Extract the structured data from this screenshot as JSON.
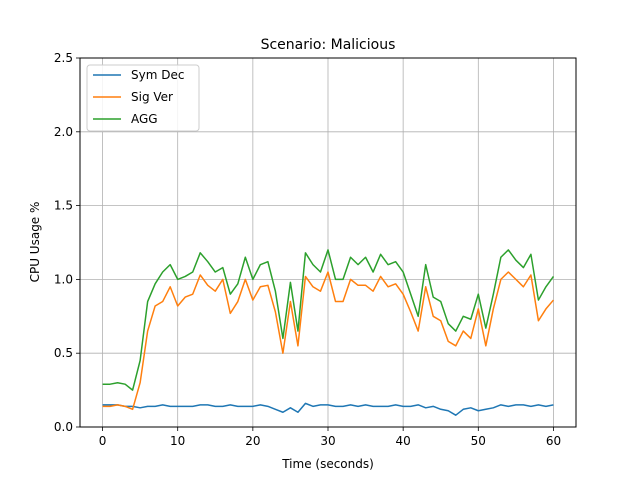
{
  "chart_data": {
    "type": "line",
    "title": "Scenario: Malicious",
    "xlabel": "Time (seconds)",
    "ylabel": "CPU Usage %",
    "xlim": [
      -3,
      63
    ],
    "ylim": [
      0,
      2.5
    ],
    "xticks": [
      0,
      10,
      20,
      30,
      40,
      50,
      60
    ],
    "yticks": [
      0.0,
      0.5,
      1.0,
      1.5,
      2.0,
      2.5
    ],
    "ytick_labels": [
      "0.0",
      "0.5",
      "1.0",
      "1.5",
      "2.0",
      "2.5"
    ],
    "grid": true,
    "legend_position": "top-left",
    "x": [
      0,
      1,
      2,
      3,
      4,
      5,
      6,
      7,
      8,
      9,
      10,
      11,
      12,
      13,
      14,
      15,
      16,
      17,
      18,
      19,
      20,
      21,
      22,
      23,
      24,
      25,
      26,
      27,
      28,
      29,
      30,
      31,
      32,
      33,
      34,
      35,
      36,
      37,
      38,
      39,
      40,
      41,
      42,
      43,
      44,
      45,
      46,
      47,
      48,
      49,
      50,
      51,
      52,
      53,
      54,
      55,
      56,
      57,
      58,
      59,
      60
    ],
    "series": [
      {
        "name": "Sym Dec",
        "color": "#1f77b4",
        "values": [
          0.15,
          0.15,
          0.15,
          0.14,
          0.14,
          0.13,
          0.14,
          0.14,
          0.15,
          0.14,
          0.14,
          0.14,
          0.14,
          0.15,
          0.15,
          0.14,
          0.14,
          0.15,
          0.14,
          0.14,
          0.14,
          0.15,
          0.14,
          0.12,
          0.1,
          0.13,
          0.1,
          0.16,
          0.14,
          0.15,
          0.15,
          0.14,
          0.14,
          0.15,
          0.14,
          0.15,
          0.14,
          0.14,
          0.14,
          0.15,
          0.14,
          0.14,
          0.15,
          0.13,
          0.14,
          0.12,
          0.11,
          0.08,
          0.12,
          0.13,
          0.11,
          0.12,
          0.13,
          0.15,
          0.14,
          0.15,
          0.15,
          0.14,
          0.15,
          0.14,
          0.15
        ]
      },
      {
        "name": "Sig Ver",
        "color": "#ff7f0e",
        "values": [
          0.14,
          0.14,
          0.15,
          0.14,
          0.12,
          0.3,
          0.65,
          0.82,
          0.85,
          0.95,
          0.82,
          0.88,
          0.9,
          1.03,
          0.96,
          0.92,
          1.0,
          0.77,
          0.85,
          1.0,
          0.86,
          0.95,
          0.96,
          0.78,
          0.5,
          0.85,
          0.55,
          1.02,
          0.95,
          0.92,
          1.05,
          0.85,
          0.85,
          1.0,
          0.96,
          0.96,
          0.92,
          1.02,
          0.95,
          0.97,
          0.9,
          0.78,
          0.65,
          0.95,
          0.75,
          0.72,
          0.58,
          0.55,
          0.65,
          0.6,
          0.8,
          0.55,
          0.8,
          1.0,
          1.05,
          1.0,
          0.95,
          1.03,
          0.72,
          0.8,
          0.86
        ]
      },
      {
        "name": "AGG",
        "color": "#2ca02c",
        "values": [
          0.29,
          0.29,
          0.3,
          0.29,
          0.25,
          0.45,
          0.85,
          0.97,
          1.05,
          1.1,
          1.0,
          1.02,
          1.05,
          1.18,
          1.12,
          1.05,
          1.08,
          0.9,
          0.97,
          1.15,
          1.0,
          1.1,
          1.12,
          0.92,
          0.6,
          0.98,
          0.65,
          1.18,
          1.1,
          1.05,
          1.2,
          1.0,
          1.0,
          1.15,
          1.1,
          1.15,
          1.05,
          1.17,
          1.1,
          1.12,
          1.05,
          0.9,
          0.75,
          1.1,
          0.88,
          0.85,
          0.7,
          0.65,
          0.75,
          0.73,
          0.9,
          0.67,
          0.9,
          1.15,
          1.2,
          1.13,
          1.08,
          1.17,
          0.86,
          0.95,
          1.02
        ]
      }
    ]
  }
}
